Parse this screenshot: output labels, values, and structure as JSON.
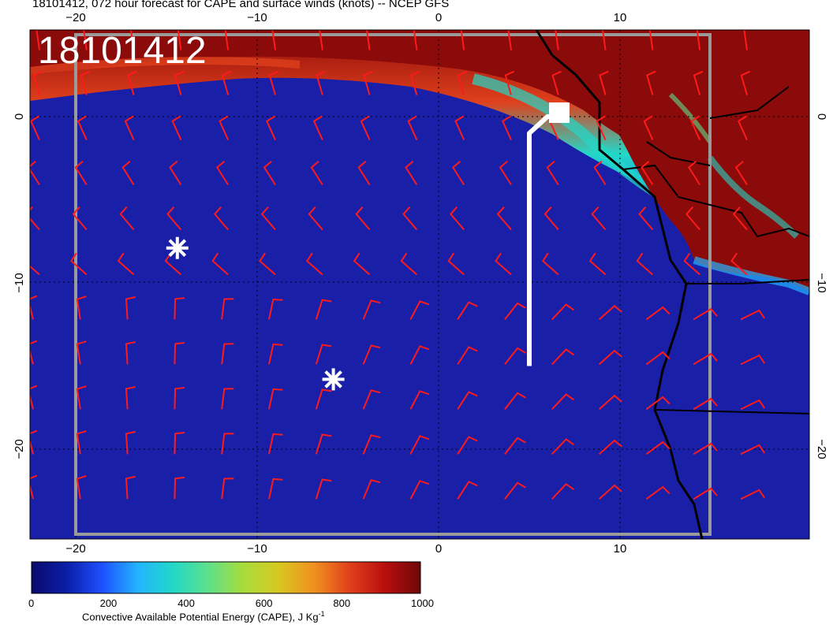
{
  "title": "18101412, 072 hour forecast for CAPE and surface winds (knots) -- NCEP GFS",
  "stamp": "18101412",
  "map": {
    "variable": "Convective Available Potential Energy (CAPE)",
    "units": "J Kg",
    "units_exponent": "-1",
    "x_ticks": [
      "−20",
      "−10",
      "0",
      "10"
    ],
    "y_ticks": [
      "0",
      "−10",
      "−20"
    ],
    "ocean_color": "#1a1fa8",
    "high_cape_color": "#8b0a0a",
    "wind_barb_color": "#ff1a1a",
    "markers": [
      {
        "name": "star-marker",
        "symbol": "asterisk",
        "lon": -14.4,
        "lat": -7.9
      },
      {
        "name": "star-marker",
        "symbol": "asterisk",
        "lon": -5.8,
        "lat": -15.8
      }
    ],
    "flight_track": {
      "color": "#ffffff",
      "points": [
        [
          5,
          -15
        ],
        [
          5,
          -1
        ],
        [
          6,
          0
        ],
        [
          7,
          0
        ]
      ]
    }
  },
  "colorbar": {
    "title": "Convective Available Potential Energy (CAPE), J Kg",
    "title_exponent": "-1",
    "min": 0,
    "max": 1000,
    "ticks": [
      "0",
      "200",
      "400",
      "600",
      "800",
      "1000"
    ],
    "colors": [
      "#0a0a6e",
      "#0b1ea8",
      "#1e50ff",
      "#22b4ff",
      "#22d8c8",
      "#5ee08a",
      "#a8dc3c",
      "#d8c820",
      "#f09020",
      "#e0401c",
      "#b80e0e",
      "#6e0808"
    ]
  }
}
